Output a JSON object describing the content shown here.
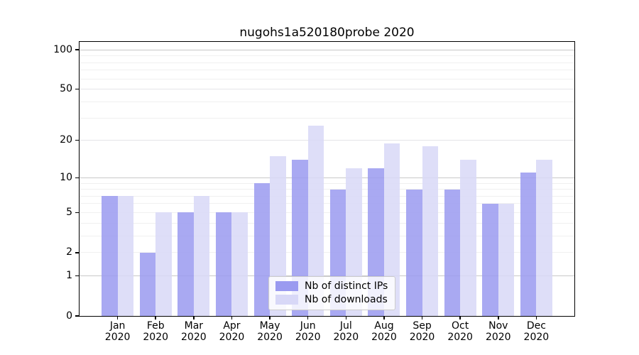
{
  "chart_data": {
    "type": "bar",
    "title": "nugohs1a520180probe 2020",
    "categories": [
      "Jan 2020",
      "Feb 2020",
      "Mar 2020",
      "Apr 2020",
      "May 2020",
      "Jun 2020",
      "Jul 2020",
      "Aug 2020",
      "Sep 2020",
      "Oct 2020",
      "Nov 2020",
      "Dec 2020"
    ],
    "series": [
      {
        "name": "Nb of distinct IPs",
        "color": "#9a9af0",
        "values": [
          7,
          2,
          5,
          5,
          9,
          14,
          8,
          12,
          8,
          8,
          6,
          11
        ]
      },
      {
        "name": "Nb of downloads",
        "color": "#d8d8f7",
        "values": [
          7,
          5,
          7,
          5,
          15,
          26,
          12,
          19,
          18,
          14,
          6,
          14
        ]
      }
    ],
    "yscale": "log1p",
    "ylim": [
      0,
      116
    ],
    "yticks": [
      0,
      1,
      2,
      5,
      10,
      20,
      50,
      100
    ],
    "gridlines": {
      "major": [
        1,
        10,
        100
      ],
      "submajor": [
        20,
        50
      ],
      "minor": [
        2,
        3,
        4,
        5,
        6,
        7,
        8,
        9,
        30,
        40,
        60,
        70,
        80,
        90
      ]
    },
    "grid": true,
    "legend_position": "lower center",
    "colors": {
      "grid_major": "#c8c8c8",
      "grid_submajor": "#e4e4e8",
      "grid_minor": "#f0f0f0",
      "axis": "#000000"
    }
  }
}
